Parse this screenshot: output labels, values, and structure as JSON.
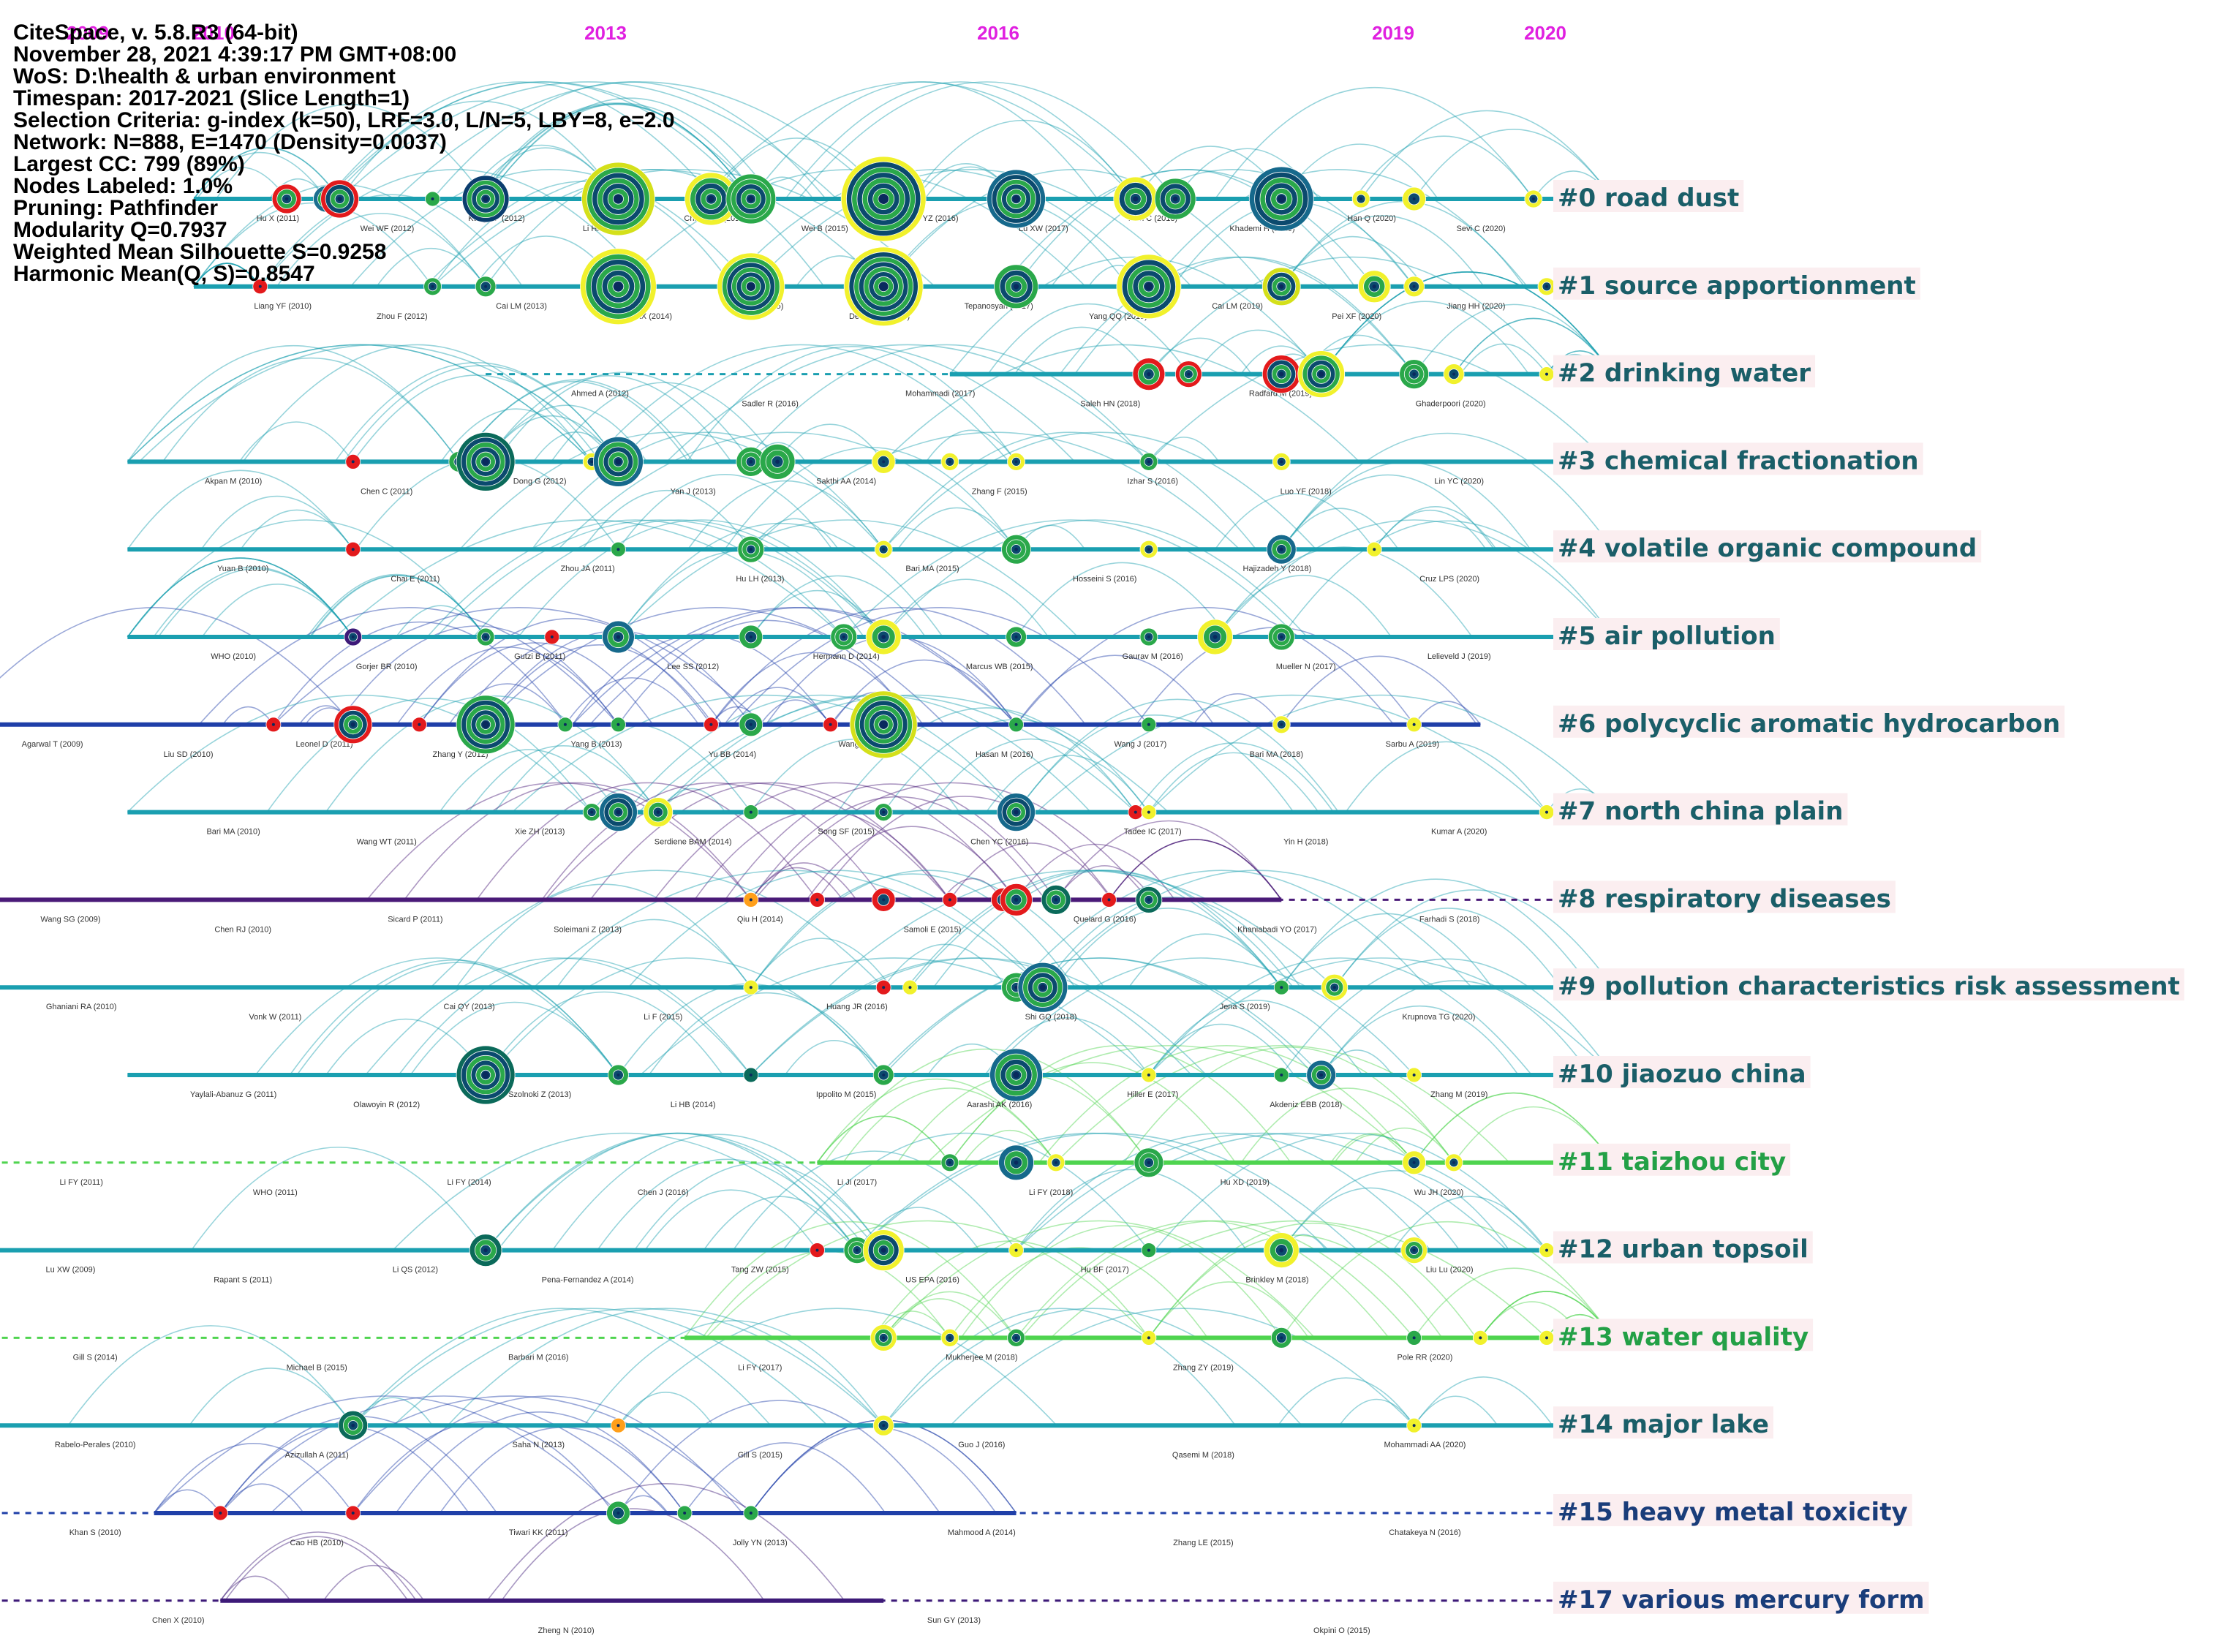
{
  "header": {
    "app": "CiteSpace, v. 5.8.R3 (64-bit)",
    "date": "November 28, 2021 4:39:17 PM GMT+08:00",
    "wos": "WoS: D:\\health & urban environment",
    "timespan": "Timespan: 2017-2021 (Slice Length=1)",
    "selection": "Selection Criteria: g-index (k=50), LRF=3.0, L/N=5, LBY=8, e=2.0",
    "network": "Network: N=888, E=1470 (Density=0.0037)",
    "largest_cc": "Largest CC: 799 (89%)",
    "nodes_labeled": "Nodes Labeled: 1.0%",
    "pruning": "Pruning: Pathfinder",
    "modularity": "Modularity Q=0.7937",
    "silhouette": "Weighted Mean Silhouette S=0.9258",
    "harmonic": "Harmonic Mean(Q, S)=0.8547"
  },
  "timeline": {
    "years": [
      "2009",
      "2010",
      "2013",
      "2016",
      "2019",
      "2020"
    ],
    "year_color": "#e020e0"
  },
  "clusters": [
    {
      "label": "#0 road dust",
      "color": "#1a9fb0",
      "text": "#1a5e68",
      "start": 2009.8,
      "end": 2020.5,
      "solid": true,
      "nodes": [
        [
          2010.5,
          20,
          "#e31a1c"
        ],
        [
          2010.8,
          18,
          "#1b6e8f"
        ],
        [
          2010.9,
          26,
          "#e31a1c"
        ],
        [
          2011.6,
          10,
          "#2aa84a"
        ],
        [
          2012.0,
          32,
          "#0b3d6e"
        ],
        [
          2013.0,
          50,
          "#d4e01a"
        ],
        [
          2013.7,
          36,
          "#f1f12c"
        ],
        [
          2014.0,
          34,
          "#2aa84a"
        ],
        [
          2015.0,
          58,
          "#f1f12c"
        ],
        [
          2016.0,
          40,
          "#16698c"
        ],
        [
          2016.9,
          30,
          "#f1f12c"
        ],
        [
          2017.2,
          28,
          "#2aa84a"
        ],
        [
          2018.0,
          44,
          "#16698c"
        ],
        [
          2018.6,
          12,
          "#f1f12c"
        ],
        [
          2019.0,
          16,
          "#f1f12c"
        ],
        [
          2019.9,
          12,
          "#f1f12c"
        ]
      ],
      "labels": [
        "Hu X (2011)",
        "Wei WF (2012)",
        "Kong SF (2012)",
        "Li HM (2013)",
        "Chang HX (2014)",
        "Wei B (2015)",
        "Liu YZ (2016)",
        "Lu XW (2017)",
        "Men C (2018)",
        "Khademi H (2019)",
        "Han Q (2020)",
        "Sevi C (2020)"
      ]
    },
    {
      "label": "#1 source apportionment",
      "color": "#1a9fb0",
      "text": "#1a5e68",
      "start": 2009.8,
      "end": 2020.5,
      "solid": true,
      "nodes": [
        [
          2010.3,
          10,
          "#e31a1c"
        ],
        [
          2011.6,
          12,
          "#2aa84a"
        ],
        [
          2012.0,
          14,
          "#2aa84a"
        ],
        [
          2013.0,
          52,
          "#f1f12c"
        ],
        [
          2014.0,
          46,
          "#f1f12c"
        ],
        [
          2015.0,
          54,
          "#f1f12c"
        ],
        [
          2016.0,
          30,
          "#2aa84a"
        ],
        [
          2017.0,
          44,
          "#f1f12c"
        ],
        [
          2018.0,
          26,
          "#d4e01a"
        ],
        [
          2018.7,
          22,
          "#f1f12c"
        ],
        [
          2019.0,
          14,
          "#f1f12c"
        ],
        [
          2020.0,
          12,
          "#f1f12c"
        ]
      ],
      "labels": [
        "Liang YF (2010)",
        "Zhou F (2012)",
        "Cai LM (2013)",
        "Chang HX (2014)",
        "Wei B (2015)",
        "De Sousa (2016)",
        "Tepanosyan (2017)",
        "Yang QQ (2018)",
        "Cai LM (2019)",
        "Pei XF (2020)",
        "Jiang HH (2020)"
      ]
    },
    {
      "label": "#2 drinking water",
      "color": "#1a9fb0",
      "text": "#1a5e68",
      "start": 2012.0,
      "end": 2020.5,
      "solid": false,
      "solid_from": 2015.5,
      "nodes": [
        [
          2017.0,
          22,
          "#e31a1c"
        ],
        [
          2017.3,
          18,
          "#e31a1c"
        ],
        [
          2018.0,
          26,
          "#e31a1c"
        ],
        [
          2018.3,
          32,
          "#f1f12c"
        ],
        [
          2019.0,
          20,
          "#2aa84a"
        ],
        [
          2019.3,
          14,
          "#f1f12c"
        ],
        [
          2020.0,
          10,
          "#f1f12c"
        ]
      ],
      "labels": [
        "Ahmed A (2012)",
        "Sadler R (2016)",
        "Mohammadi (2017)",
        "Saleh HN (2018)",
        "Radfard M (2019)",
        "Ghaderpoori (2020)"
      ]
    },
    {
      "label": "#3 chemical fractionation",
      "color": "#1a9fb0",
      "text": "#1a5e68",
      "start": 2009.3,
      "end": 2020.5,
      "solid": true,
      "nodes": [
        [
          2011.0,
          10,
          "#e31a1c"
        ],
        [
          2011.8,
          14,
          "#2aa84a"
        ],
        [
          2012.0,
          40,
          "#0b6a5a"
        ],
        [
          2012.8,
          12,
          "#f1f12c"
        ],
        [
          2013.0,
          34,
          "#16698c"
        ],
        [
          2014.0,
          20,
          "#2aa84a"
        ],
        [
          2014.2,
          24,
          "#2aa84a"
        ],
        [
          2015.0,
          16,
          "#f1f12c"
        ],
        [
          2015.5,
          12,
          "#f1f12c"
        ],
        [
          2016.0,
          12,
          "#f1f12c"
        ],
        [
          2017.0,
          12,
          "#2aa84a"
        ],
        [
          2018.0,
          12,
          "#f1f12c"
        ]
      ],
      "labels": [
        "Akpan M (2010)",
        "Chen C (2011)",
        "Dong G (2012)",
        "Yan J (2013)",
        "Sakthi AA (2014)",
        "Zhang F (2015)",
        "Izhar S (2016)",
        "Luo YF (2018)",
        "Lin YC (2020)"
      ]
    },
    {
      "label": "#4 volatile organic compound",
      "color": "#1a9fb0",
      "text": "#1a5e68",
      "start": 2009.3,
      "end": 2020.5,
      "solid": true,
      "nodes": [
        [
          2011.0,
          10,
          "#e31a1c"
        ],
        [
          2013.0,
          10,
          "#2aa84a"
        ],
        [
          2014.0,
          18,
          "#2aa84a"
        ],
        [
          2015.0,
          12,
          "#f1f12c"
        ],
        [
          2016.0,
          20,
          "#2aa84a"
        ],
        [
          2017.0,
          12,
          "#f1f12c"
        ],
        [
          2018.0,
          20,
          "#16698c"
        ],
        [
          2018.7,
          10,
          "#f1f12c"
        ]
      ],
      "labels": [
        "Yuan B (2010)",
        "Chai E (2011)",
        "Zhou JA (2011)",
        "Hu LH (2013)",
        "Bari MA (2015)",
        "Hosseini S (2016)",
        "Hajizadeh Y (2018)",
        "Cruz LPS (2020)"
      ]
    },
    {
      "label": "#5 air pollution",
      "color": "#1a9fb0",
      "text": "#1a5e68",
      "start": 2009.3,
      "end": 2020.5,
      "solid": true,
      "nodes": [
        [
          2011.0,
          12,
          "#3d1a78"
        ],
        [
          2012.0,
          12,
          "#2aa84a"
        ],
        [
          2012.5,
          10,
          "#e31a1c"
        ],
        [
          2013.0,
          22,
          "#16698c"
        ],
        [
          2014.0,
          16,
          "#2aa84a"
        ],
        [
          2014.7,
          18,
          "#2aa84a"
        ],
        [
          2015.0,
          24,
          "#f1f12c"
        ],
        [
          2016.0,
          14,
          "#2aa84a"
        ],
        [
          2017.0,
          12,
          "#2aa84a"
        ],
        [
          2017.5,
          24,
          "#f1f12c"
        ],
        [
          2018.0,
          18,
          "#2aa84a"
        ]
      ],
      "labels": [
        "WHO (2010)",
        "Gorjer BR (2010)",
        "Gutzi B (2011)",
        "Lee SS (2012)",
        "Hermann D (2014)",
        "Marcus WB (2015)",
        "Gaurav M (2016)",
        "Mueller N (2017)",
        "Lelieveld J (2019)"
      ]
    },
    {
      "label": "#6 polycyclic aromatic hydrocarbon",
      "color": "#1f3fa8",
      "text": "#1a5e68",
      "start": 2008.0,
      "end": 2019.5,
      "solid": true,
      "nodes": [
        [
          2010.4,
          10,
          "#e31a1c"
        ],
        [
          2011.0,
          26,
          "#e31a1c"
        ],
        [
          2011.5,
          10,
          "#e31a1c"
        ],
        [
          2012.0,
          40,
          "#2aa84a"
        ],
        [
          2012.6,
          10,
          "#2aa84a"
        ],
        [
          2013.0,
          10,
          "#2aa84a"
        ],
        [
          2013.7,
          10,
          "#e31a1c"
        ],
        [
          2014.0,
          16,
          "#2aa84a"
        ],
        [
          2014.6,
          10,
          "#e31a1c"
        ],
        [
          2015.0,
          46,
          "#d4e01a"
        ],
        [
          2016.0,
          10,
          "#2aa84a"
        ],
        [
          2017.0,
          10,
          "#2aa84a"
        ],
        [
          2018.0,
          12,
          "#f1f12c"
        ],
        [
          2019.0,
          10,
          "#f1f12c"
        ]
      ],
      "labels": [
        "Agarwal T (2009)",
        "Liu SD (2010)",
        "Leonel D (2011)",
        "Zhang Y (2012)",
        "Yang B (2013)",
        "Yu BB (2014)",
        "Wang CH (2015)",
        "Hasan M (2016)",
        "Wang J (2017)",
        "Bari MA (2018)",
        "Sarbu A (2019)"
      ]
    },
    {
      "label": "#7 north china plain",
      "color": "#1a9fb0",
      "text": "#1a5e68",
      "start": 2009.3,
      "end": 2020.5,
      "solid": true,
      "nodes": [
        [
          2012.8,
          12,
          "#2aa84a"
        ],
        [
          2013.0,
          26,
          "#16698c"
        ],
        [
          2013.3,
          20,
          "#f1f12c"
        ],
        [
          2014.0,
          10,
          "#2aa84a"
        ],
        [
          2015.0,
          12,
          "#2aa84a"
        ],
        [
          2016.0,
          26,
          "#16698c"
        ],
        [
          2016.9,
          10,
          "#e31a1c"
        ],
        [
          2017.0,
          10,
          "#f1f12c"
        ],
        [
          2020.0,
          10,
          "#f1f12c"
        ]
      ],
      "labels": [
        "Bari MA (2010)",
        "Wang WT (2011)",
        "Xie ZH (2013)",
        "Serdiene BAM (2014)",
        "Song SF (2015)",
        "Chen YC (2016)",
        "Tadee IC (2017)",
        "Yin H (2018)",
        "Kumar A (2020)"
      ]
    },
    {
      "label": "#8 respiratory diseases",
      "color": "#4a1a78",
      "text": "#1a5e68",
      "start": 2008.0,
      "end": 2020.5,
      "solid": false,
      "solid_end": 2018.0,
      "nodes": [
        [
          2014.0,
          10,
          "#ff9f1a"
        ],
        [
          2014.5,
          10,
          "#e31a1c"
        ],
        [
          2015.0,
          16,
          "#e31a1c"
        ],
        [
          2015.5,
          10,
          "#e31a1c"
        ],
        [
          2015.9,
          16,
          "#e31a1c"
        ],
        [
          2016.0,
          22,
          "#e31a1c"
        ],
        [
          2016.3,
          20,
          "#0b6a5a"
        ],
        [
          2016.7,
          10,
          "#e31a1c"
        ],
        [
          2017.0,
          18,
          "#0b6a5a"
        ]
      ],
      "labels": [
        "Wang SG (2009)",
        "Chen RJ (2010)",
        "Sicard P (2011)",
        "Soleimani Z (2013)",
        "Qiu H (2014)",
        "Samoli E (2015)",
        "Quelard G (2016)",
        "Khaniabadi YO (2017)",
        "Farhadi S (2018)"
      ]
    },
    {
      "label": "#9 pollution characteristics risk assessment",
      "color": "#1a9fb0",
      "text": "#1a5e68",
      "start": 2008.0,
      "end": 2020.5,
      "solid": true,
      "nodes": [
        [
          2014.0,
          10,
          "#f1f12c"
        ],
        [
          2015.0,
          10,
          "#e31a1c"
        ],
        [
          2015.2,
          10,
          "#f1f12c"
        ],
        [
          2016.0,
          20,
          "#2aa84a"
        ],
        [
          2016.2,
          34,
          "#16698c"
        ],
        [
          2018.0,
          10,
          "#2aa84a"
        ],
        [
          2018.4,
          18,
          "#f1f12c"
        ]
      ],
      "labels": [
        "Ghaniani RA (2010)",
        "Vonk W (2011)",
        "Cai QY (2013)",
        "Li F (2015)",
        "Huang JR (2016)",
        "Shi GQ (2018)",
        "Jena S (2019)",
        "Krupnova TG (2020)"
      ]
    },
    {
      "label": "#10 jiaozuo china",
      "color": "#1a9fb0",
      "text": "#1a5e68",
      "start": 2009.3,
      "end": 2020.5,
      "solid": true,
      "nodes": [
        [
          2012.0,
          40,
          "#0b6a5a"
        ],
        [
          2013.0,
          14,
          "#2aa84a"
        ],
        [
          2014.0,
          10,
          "#0b6a5a"
        ],
        [
          2015.0,
          14,
          "#2aa84a"
        ],
        [
          2016.0,
          36,
          "#16698c"
        ],
        [
          2017.0,
          10,
          "#f1f12c"
        ],
        [
          2018.0,
          10,
          "#2aa84a"
        ],
        [
          2018.3,
          20,
          "#16698c"
        ],
        [
          2019.0,
          10,
          "#f1f12c"
        ]
      ],
      "labels": [
        "Yaylali-Abanuz G (2011)",
        "Olawoyin R (2012)",
        "Szolnoki Z (2013)",
        "Li HB (2014)",
        "Ippolito M (2015)",
        "Aarashi AK (2016)",
        "Hiller E (2017)",
        "Akdeniz EBB (2018)",
        "Zhang M (2019)"
      ]
    },
    {
      "label": "#11 taizhou city",
      "color": "#4fd44f",
      "text": "#23a046",
      "start": 2008.0,
      "end": 2020.5,
      "solid": false,
      "solid_from": 2014.5,
      "nodes": [
        [
          2015.5,
          12,
          "#2aa84a"
        ],
        [
          2016.0,
          24,
          "#16698c"
        ],
        [
          2016.3,
          12,
          "#f1f12c"
        ],
        [
          2017.0,
          20,
          "#2aa84a"
        ],
        [
          2019.0,
          16,
          "#f1f12c"
        ],
        [
          2019.3,
          12,
          "#f1f12c"
        ]
      ],
      "labels": [
        "Li FY (2011)",
        "WHO (2011)",
        "Li FY (2014)",
        "Chen J (2016)",
        "Li Ji (2017)",
        "Li FY (2018)",
        "Hu XD (2019)",
        "Wu JH (2020)"
      ]
    },
    {
      "label": "#12 urban topsoil",
      "color": "#1a9fb0",
      "text": "#1a5e68",
      "start": 2008.0,
      "end": 2020.5,
      "solid": true,
      "nodes": [
        [
          2012.0,
          22,
          "#0b6a5a"
        ],
        [
          2014.5,
          10,
          "#e31a1c"
        ],
        [
          2014.8,
          18,
          "#2aa84a"
        ],
        [
          2015.0,
          28,
          "#f1f12c"
        ],
        [
          2016.0,
          10,
          "#f1f12c"
        ],
        [
          2017.0,
          10,
          "#2aa84a"
        ],
        [
          2018.0,
          24,
          "#f1f12c"
        ],
        [
          2019.0,
          18,
          "#f1f12c"
        ],
        [
          2020.0,
          10,
          "#f1f12c"
        ]
      ],
      "labels": [
        "Lu XW (2009)",
        "Rapant S (2011)",
        "Li QS (2012)",
        "Pena-Fernandez A (2014)",
        "Tang ZW (2015)",
        "US EPA (2016)",
        "Hu BF (2017)",
        "Brinkley M (2018)",
        "Liu Lu (2020)"
      ]
    },
    {
      "label": "#13 water quality",
      "color": "#4fd44f",
      "text": "#23a046",
      "start": 2008.0,
      "end": 2020.5,
      "solid": false,
      "solid_from": 2013.5,
      "nodes": [
        [
          2015.0,
          18,
          "#f1f12c"
        ],
        [
          2015.5,
          12,
          "#f1f12c"
        ],
        [
          2016.0,
          12,
          "#2aa84a"
        ],
        [
          2017.0,
          10,
          "#f1f12c"
        ],
        [
          2018.0,
          14,
          "#2aa84a"
        ],
        [
          2019.0,
          10,
          "#2aa84a"
        ],
        [
          2019.5,
          10,
          "#f1f12c"
        ],
        [
          2020.0,
          10,
          "#f1f12c"
        ]
      ],
      "labels": [
        "Gill S (2014)",
        "Michael B (2015)",
        "Barbari M (2016)",
        "Li FY (2017)",
        "Mukherjee M (2018)",
        "Zhang ZY (2019)",
        "Pole RR (2020)"
      ]
    },
    {
      "label": "#14 major lake",
      "color": "#1a9fb0",
      "text": "#1a5e68",
      "start": 2008.0,
      "end": 2020.5,
      "solid": true,
      "nodes": [
        [
          2011.0,
          20,
          "#0b6a5a"
        ],
        [
          2013.0,
          10,
          "#ff9f1a"
        ],
        [
          2015.0,
          14,
          "#f1f12c"
        ],
        [
          2019.0,
          10,
          "#f1f12c"
        ]
      ],
      "labels": [
        "Rabelo-Perales (2010)",
        "Azizullah A (2011)",
        "Saha N (2013)",
        "Gill S (2015)",
        "Guo J (2016)",
        "Qasemi M (2018)",
        "Mohammadi AA (2020)"
      ]
    },
    {
      "label": "#15 heavy metal toxicity",
      "color": "#1f3fa8",
      "text": "#1a3d7a",
      "start": 2008.0,
      "end": 2020.5,
      "solid": false,
      "solid_from": 2009.5,
      "solid_end": 2016.0,
      "nodes": [
        [
          2010.0,
          10,
          "#e31a1c"
        ],
        [
          2011.0,
          10,
          "#e31a1c"
        ],
        [
          2013.0,
          16,
          "#2aa84a"
        ],
        [
          2013.5,
          10,
          "#2aa84a"
        ],
        [
          2014.0,
          10,
          "#2aa84a"
        ]
      ],
      "labels": [
        "Khan S (2010)",
        "Cao HB (2010)",
        "Tiwari KK (2011)",
        "Jolly YN (2013)",
        "Mahmood A (2014)",
        "Zhang LE (2015)",
        "Chatakeya N (2016)"
      ]
    },
    {
      "label": "#17 various mercury form",
      "color": "#3d1a78",
      "text": "#1a3d7a",
      "start": 2008.0,
      "end": 2020.5,
      "solid": false,
      "solid_from": 2010.0,
      "solid_end": 2015.0,
      "nodes": [],
      "labels": [
        "Chen X (2010)",
        "Zheng N (2010)",
        "Sun GY (2013)",
        "Okpini O (2015)"
      ]
    }
  ]
}
